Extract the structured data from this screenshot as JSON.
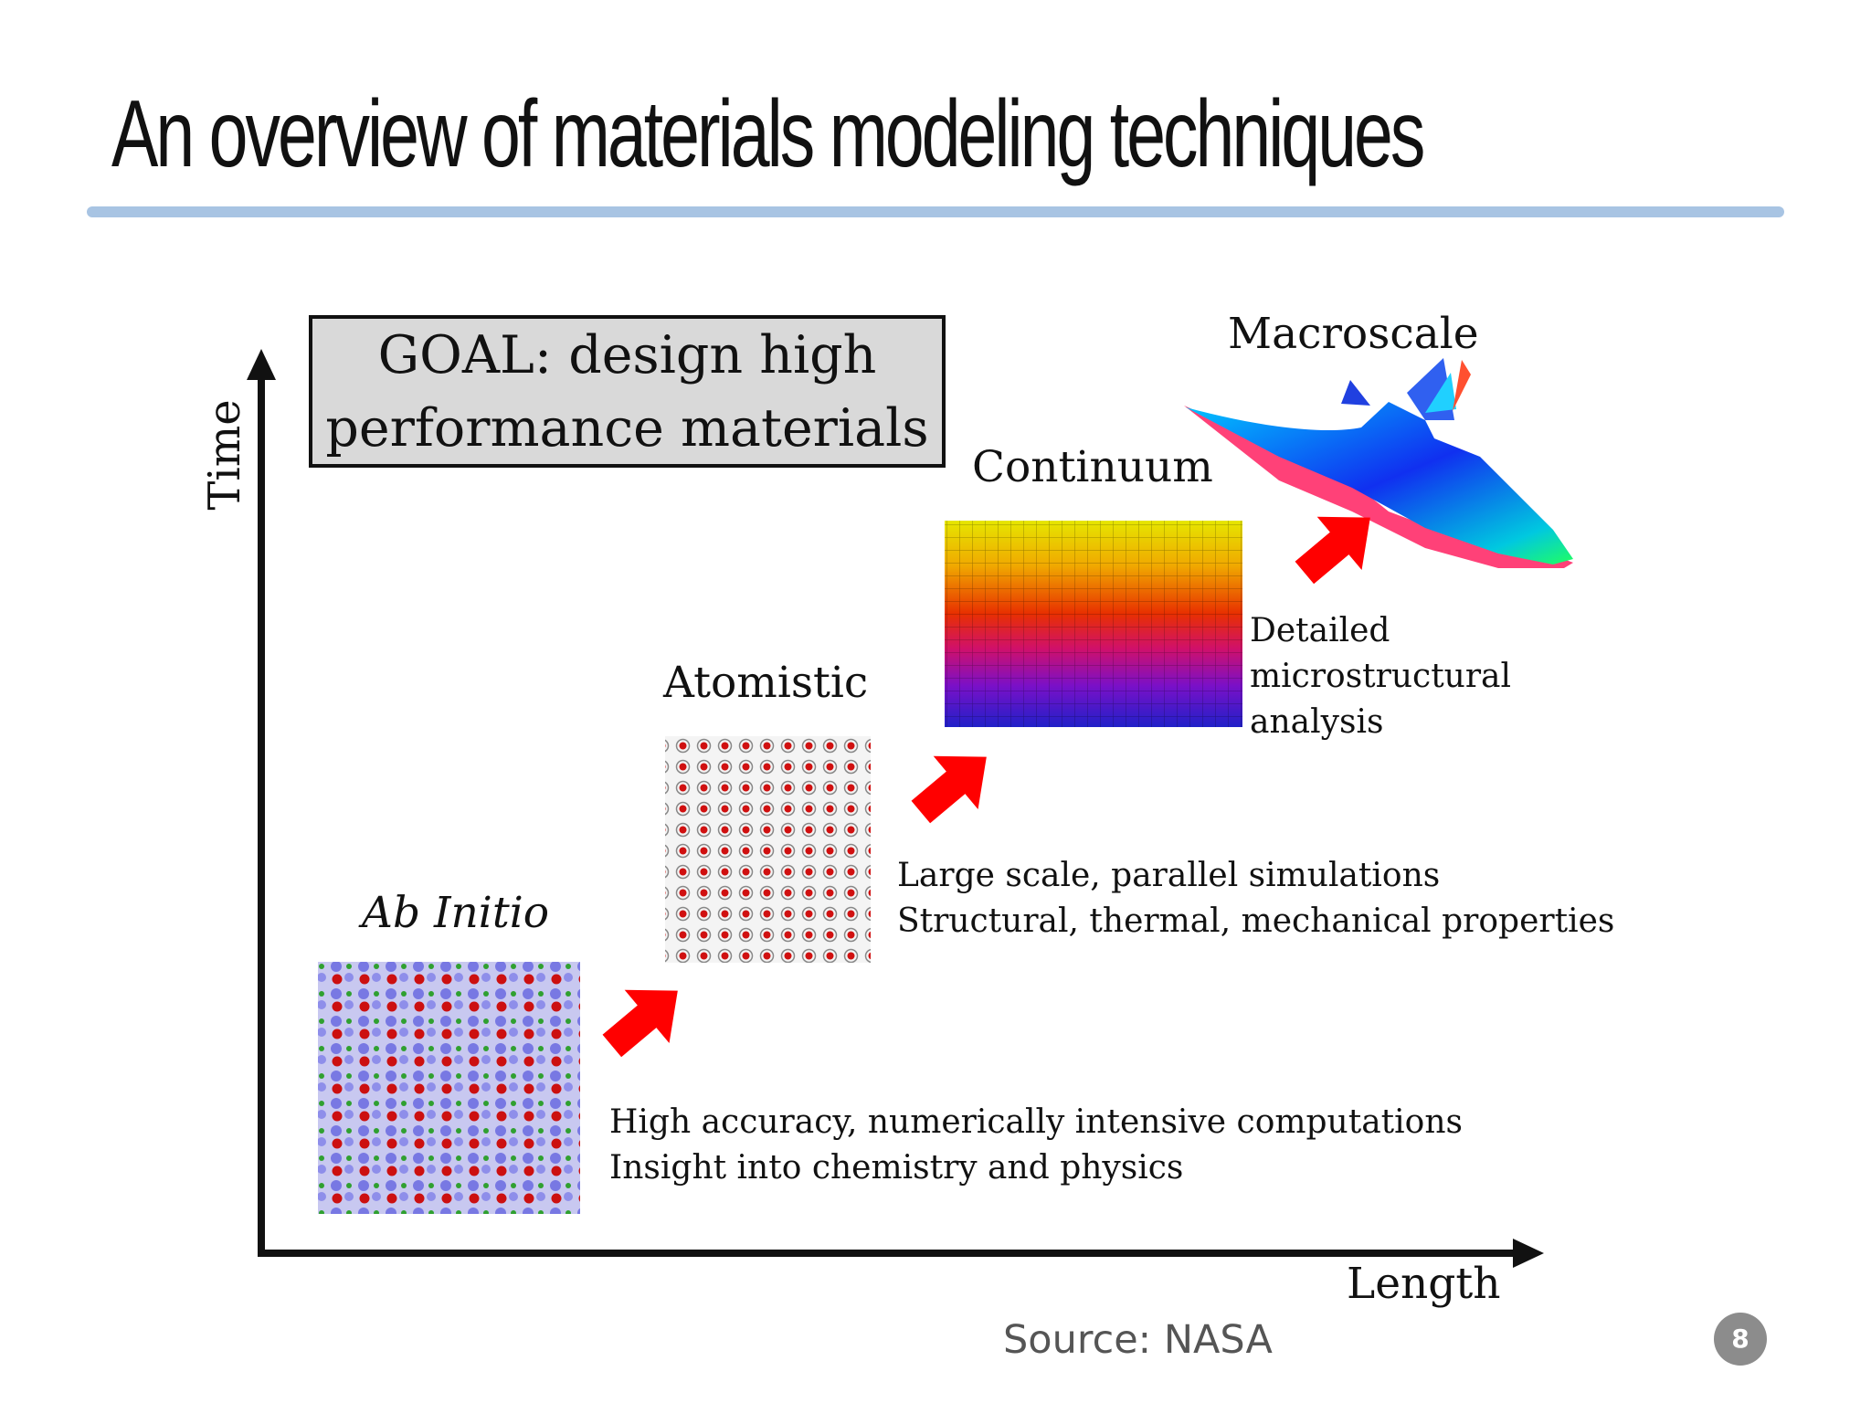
{
  "slide": {
    "title": "An overview of materials modeling techniques",
    "page_number": "8",
    "source": "Source: NASA"
  },
  "diagram": {
    "goal_line1": "GOAL: design high",
    "goal_line2": "performance materials",
    "y_axis_label": "Time",
    "x_axis_label": "Length",
    "stages": [
      {
        "name": "Ab Initio",
        "desc1": "High accuracy, numerically intensive computations",
        "desc2": "Insight into chemistry and physics"
      },
      {
        "name": "Atomistic",
        "desc1": "Large scale, parallel simulations",
        "desc2": "Structural, thermal, mechanical properties"
      },
      {
        "name": "Continuum",
        "desc1": "Detailed",
        "desc2": "microstructural",
        "desc3": "analysis"
      },
      {
        "name": "Macroscale"
      }
    ]
  },
  "colors": {
    "rule": "#a8c4e3",
    "arrow": "#ff0000",
    "axis": "#111111"
  }
}
